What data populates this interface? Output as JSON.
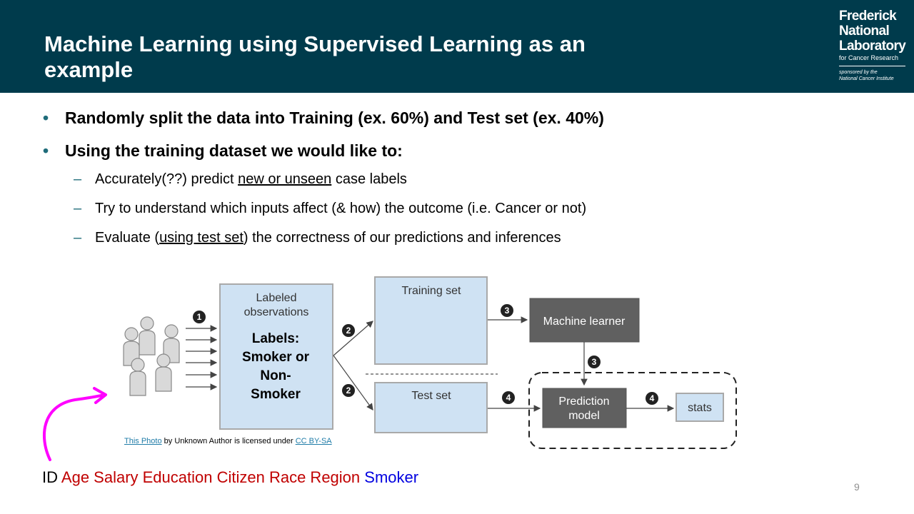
{
  "header": {
    "title_line1": "Machine Learning using Supervised Learning as an",
    "title_line2": "example",
    "logo": {
      "line1": "Frederick",
      "line2": "National",
      "line3": "Laboratory",
      "line4": "for Cancer Research",
      "line5": "sponsored by the",
      "line6": "National Cancer Institute"
    }
  },
  "bullets": [
    {
      "marker": "•",
      "text": "Randomly split the data into Training (ex. 60%) and Test set (ex. 40%)"
    },
    {
      "marker": "•",
      "text": "Using the training dataset we would like to:"
    }
  ],
  "subbullets": [
    {
      "marker": "–",
      "before": "Accurately(??) predict ",
      "underlined": "new or unseen",
      "after": " case labels"
    },
    {
      "marker": "–",
      "text": "Try to understand which inputs affect (& how) the outcome (i.e. Cancer or not)"
    },
    {
      "marker": "–",
      "before": "Evaluate (",
      "underlined": "using test set",
      "after": ") the correctness of our predictions and inferences"
    }
  ],
  "diagram": {
    "labeled_box_line1": "Labeled",
    "labeled_box_line2": "observations",
    "labels_text": [
      "Labels:",
      "Smoker or",
      "Non-",
      "Smoker"
    ],
    "training_set": "Training set",
    "test_set": "Test set",
    "machine_learner": "Machine learner",
    "prediction_model_line1": "Prediction",
    "prediction_model_line2": "model",
    "stats": "stats",
    "steps": [
      "1",
      "2",
      "2",
      "3",
      "3",
      "4",
      "4"
    ],
    "colors": {
      "light_box": "#cfe2f3",
      "box_border": "#a9a9a9",
      "dark_box": "#606060",
      "step_circle": "#222222",
      "arrow_curve": "#ff00ff"
    }
  },
  "attribution": {
    "link1": "This Photo",
    "middle": " by Unknown Author is licensed under ",
    "link2": "CC BY-SA"
  },
  "id_line": {
    "id": "ID",
    "red_words": "Age Salary Education Citizen Race Region",
    "blue_word": "Smoker"
  },
  "page_number": "9"
}
